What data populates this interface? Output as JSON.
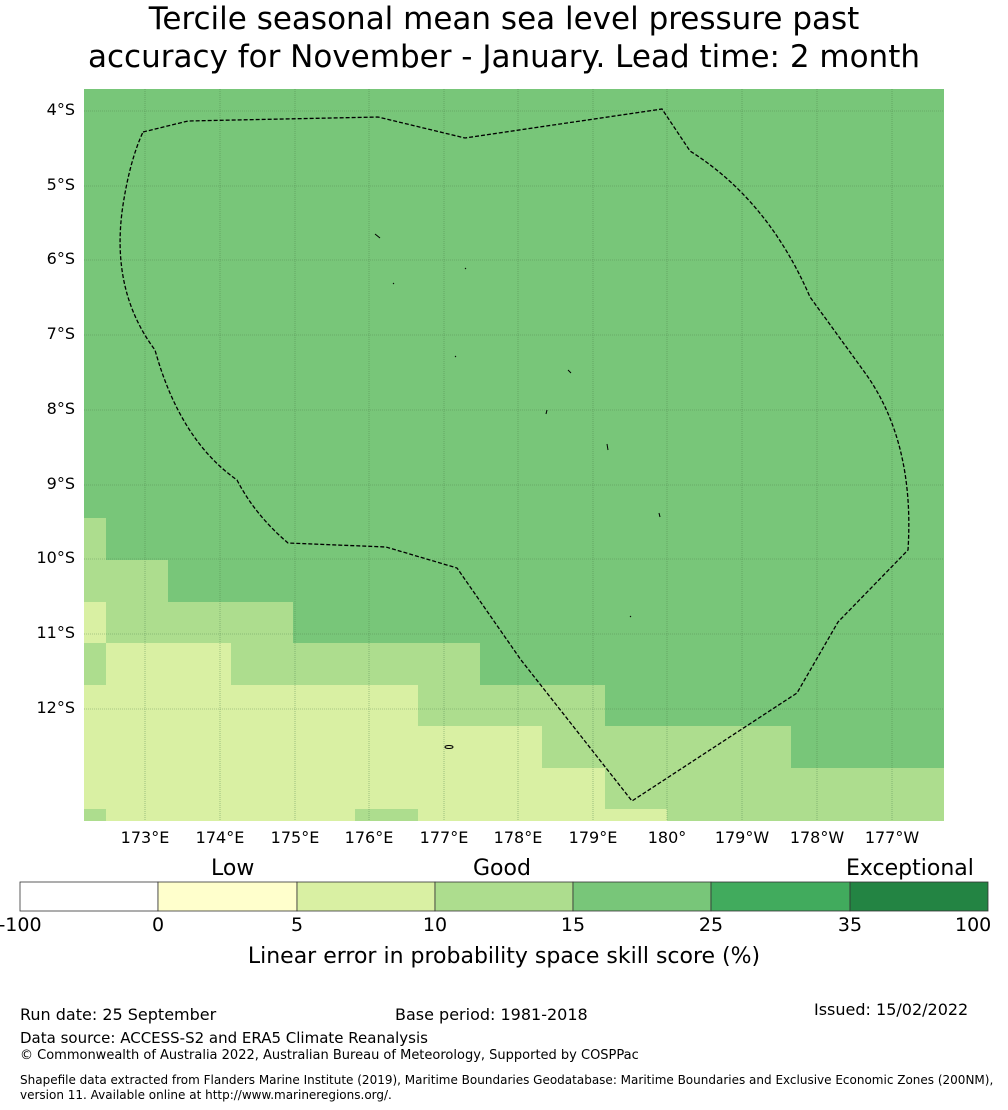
{
  "title": {
    "line1": "Tercile seasonal mean sea level pressure past",
    "line2": "accuracy for November - January. Lead time: 2 month"
  },
  "map": {
    "lat_labels": [
      "4°S",
      "5°S",
      "6°S",
      "7°S",
      "8°S",
      "9°S",
      "10°S",
      "11°S",
      "12°S"
    ],
    "lon_labels": [
      "173°E",
      "174°E",
      "175°E",
      "176°E",
      "177°E",
      "178°E",
      "179°E",
      "180°",
      "179°W",
      "178°W",
      "177°W"
    ],
    "colors": {
      "land_outline": "#000000",
      "eez_boundary": "#000000",
      "gridline": "#4a7a4a"
    }
  },
  "colorbar": {
    "categories": [
      "Low",
      "Good",
      "Exceptional"
    ],
    "ticks": [
      "-100",
      "0",
      "5",
      "10",
      "15",
      "25",
      "35",
      "100"
    ],
    "colors": [
      "#ffffff",
      "#ffffcc",
      "#d9f0a3",
      "#addd8e",
      "#78c679",
      "#41ab5d",
      "#238443"
    ],
    "label": "Linear error in probability space skill score (%)"
  },
  "footer": {
    "run_date": "Run date: 25 September",
    "base_period": "Base period: 1981-2018",
    "issued": "Issued: 15/02/2022",
    "data_source": "Data source: ACCESS-S2 and ERA5 Climate Reanalysis",
    "copyright": "© Commonwealth of Australia 2022, Australian Bureau of Meteorology, Supported by COSPPac",
    "shapefile_line1": "Shapefile data extracted from Flanders Marine Institute (2019), Maritime Boundaries Geodatabase: Maritime Boundaries and Exclusive Economic Zones (200NM),",
    "shapefile_line2": "version 11. Available online at http://www.marineregions.org/."
  }
}
